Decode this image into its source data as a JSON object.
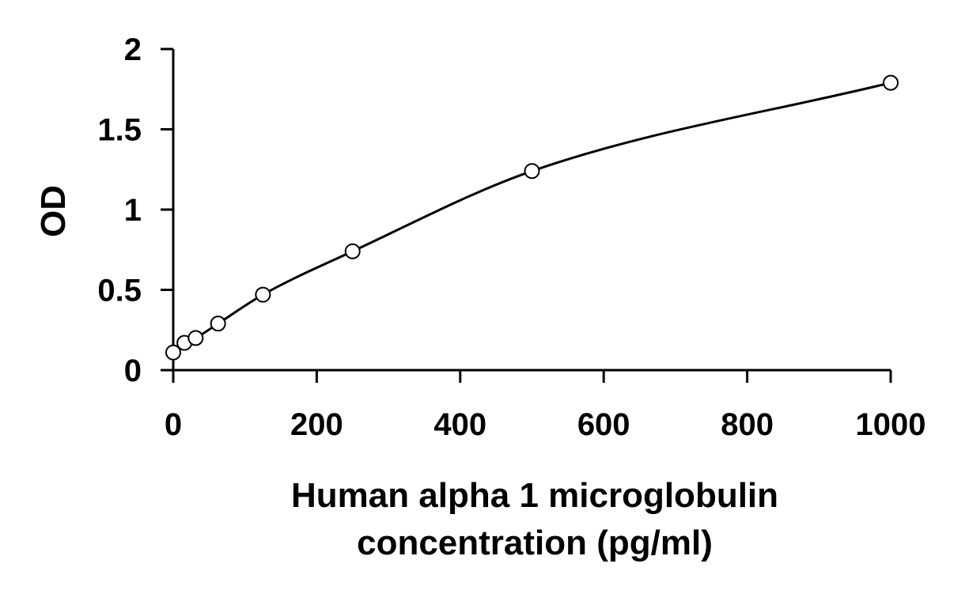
{
  "chart_data": {
    "type": "scatter",
    "title": "",
    "xlabel_lines": [
      "Human alpha 1 microglobulin",
      "concentration (pg/ml)"
    ],
    "ylabel": "OD",
    "xlim": [
      0,
      1000
    ],
    "ylim": [
      0,
      2
    ],
    "x_ticks": [
      0,
      200,
      400,
      600,
      800,
      1000
    ],
    "y_ticks": [
      0,
      0.5,
      1,
      1.5,
      2
    ],
    "x_tick_labels": [
      "0",
      "200",
      "400",
      "600",
      "800",
      "1000"
    ],
    "y_tick_labels": [
      "0",
      "0.5",
      "1",
      "1.5",
      "2"
    ],
    "grid": false,
    "legend": "none",
    "fit_curve": true,
    "series": [
      {
        "x": [
          0,
          15.6,
          31.25,
          62.5,
          125,
          250,
          500,
          1000
        ],
        "y": [
          0.11,
          0.17,
          0.2,
          0.29,
          0.47,
          0.74,
          1.24,
          1.79
        ]
      }
    ]
  }
}
